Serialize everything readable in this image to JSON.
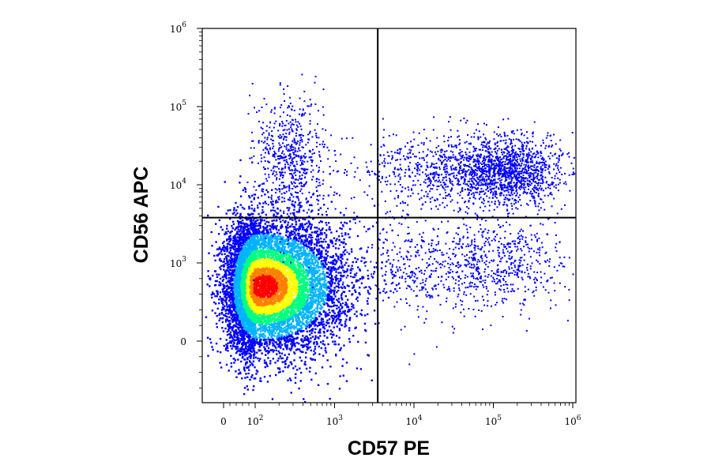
{
  "chart_data": {
    "type": "scatter",
    "subtype": "flow-cytometry-density-dot-plot",
    "title": "",
    "xlabel": "CD57 PE",
    "ylabel": "CD56 APC",
    "x_scale": "biexponential (log above ~10^2, linear near 0)",
    "y_scale": "biexponential (log above ~10^2, linear near 0)",
    "xlim": [
      -300,
      1000000
    ],
    "ylim": [
      -800,
      1000000
    ],
    "x_ticks": [
      {
        "base": "0",
        "exp": "",
        "value": 0
      },
      {
        "base": "10",
        "exp": "2",
        "value": 100
      },
      {
        "base": "10",
        "exp": "3",
        "value": 1000
      },
      {
        "base": "10",
        "exp": "4",
        "value": 10000
      },
      {
        "base": "10",
        "exp": "5",
        "value": 100000
      },
      {
        "base": "10",
        "exp": "6",
        "value": 1000000
      }
    ],
    "y_ticks": [
      {
        "base": "0",
        "exp": "",
        "value": 0
      },
      {
        "base": "10",
        "exp": "3",
        "value": 1000
      },
      {
        "base": "10",
        "exp": "4",
        "value": 10000
      },
      {
        "base": "10",
        "exp": "5",
        "value": 100000
      },
      {
        "base": "10",
        "exp": "6",
        "value": 1000000
      }
    ],
    "quadrant_gate": {
      "x": 3500,
      "y": 3800
    },
    "density_colormap": [
      "#0000ff",
      "#00b4ff",
      "#00ff80",
      "#ffff00",
      "#ff8000",
      "#ff0000"
    ],
    "populations": [
      {
        "x_center": 130,
        "y_center": 700,
        "count": 9000,
        "density": "very high (red core)"
      },
      {
        "x_center": 280,
        "y_center": 20000,
        "count": 650,
        "density": "low"
      },
      {
        "x_center": 150000,
        "y_center": 15000,
        "count": 1400,
        "density": "medium"
      },
      {
        "x_center": 20000,
        "y_center": 15000,
        "count": 600,
        "density": "low"
      },
      {
        "x_center": 130000,
        "y_center": 1000,
        "count": 450,
        "density": "low"
      },
      {
        "x_center": 15000,
        "y_center": 900,
        "count": 500,
        "density": "low"
      }
    ],
    "grid": false,
    "legend": "none"
  }
}
